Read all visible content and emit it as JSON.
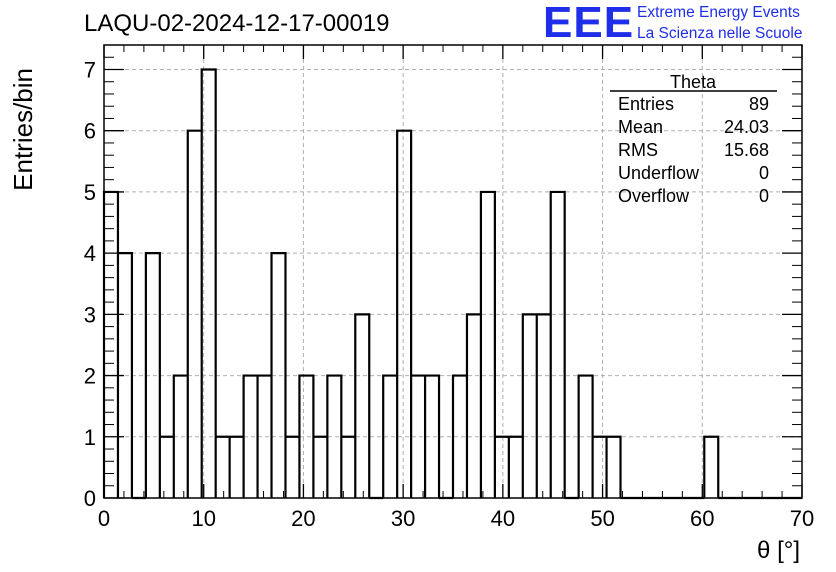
{
  "header": {
    "title": "LAQU-02-2024-12-17-00019",
    "logo_text": "EEE",
    "logo_line1": "Extreme Energy Events",
    "logo_line2": "La Scienza nelle Scuole"
  },
  "colors": {
    "brand": "#1f2ee8",
    "line": "#000000",
    "grid": "#b0b0b0"
  },
  "stats": {
    "name": "Theta",
    "rows": [
      {
        "label": "Entries",
        "value": "89"
      },
      {
        "label": "Mean",
        "value": "24.03"
      },
      {
        "label": "RMS",
        "value": "15.68"
      },
      {
        "label": "Underflow",
        "value": "0"
      },
      {
        "label": "Overflow",
        "value": "0"
      }
    ]
  },
  "chart_data": {
    "type": "bar",
    "style": "step-histogram",
    "bin_width": 1.4,
    "bin_low_edges": [
      0,
      1.4,
      2.8,
      4.2,
      5.6,
      7.0,
      8.4,
      9.8,
      11.2,
      12.6,
      14.0,
      15.4,
      16.8,
      18.2,
      19.6,
      21.0,
      22.4,
      23.8,
      25.2,
      26.6,
      28.0,
      29.4,
      30.8,
      32.2,
      33.6,
      35.0,
      36.4,
      37.8,
      39.2,
      40.6,
      42.0,
      43.4,
      44.8,
      46.2,
      47.6,
      49.0,
      50.4,
      51.8,
      53.2,
      54.6,
      56.0,
      57.4,
      58.8,
      60.2,
      61.6,
      63.0,
      64.4,
      65.8,
      67.2,
      68.6
    ],
    "values": [
      5,
      4,
      0,
      4,
      1,
      2,
      6,
      7,
      1,
      1,
      2,
      2,
      4,
      1,
      2,
      1,
      2,
      1,
      3,
      0,
      2,
      6,
      2,
      2,
      0,
      2,
      3,
      5,
      1,
      1,
      3,
      3,
      5,
      0,
      2,
      1,
      1,
      0,
      0,
      0,
      0,
      0,
      0,
      1,
      0,
      0,
      0,
      0,
      0,
      0
    ],
    "title": "LAQU-02-2024-12-17-00019",
    "xlabel": "θ [°]",
    "ylabel": "Entries/bin",
    "xlim": [
      0,
      70
    ],
    "ylim": [
      0,
      7.4
    ],
    "xticks": [
      "0",
      "10",
      "20",
      "30",
      "40",
      "50",
      "60",
      "70"
    ],
    "yticks": [
      "0",
      "1",
      "2",
      "3",
      "4",
      "5",
      "6",
      "7"
    ],
    "grid": true,
    "legend": "stats box top-right"
  }
}
